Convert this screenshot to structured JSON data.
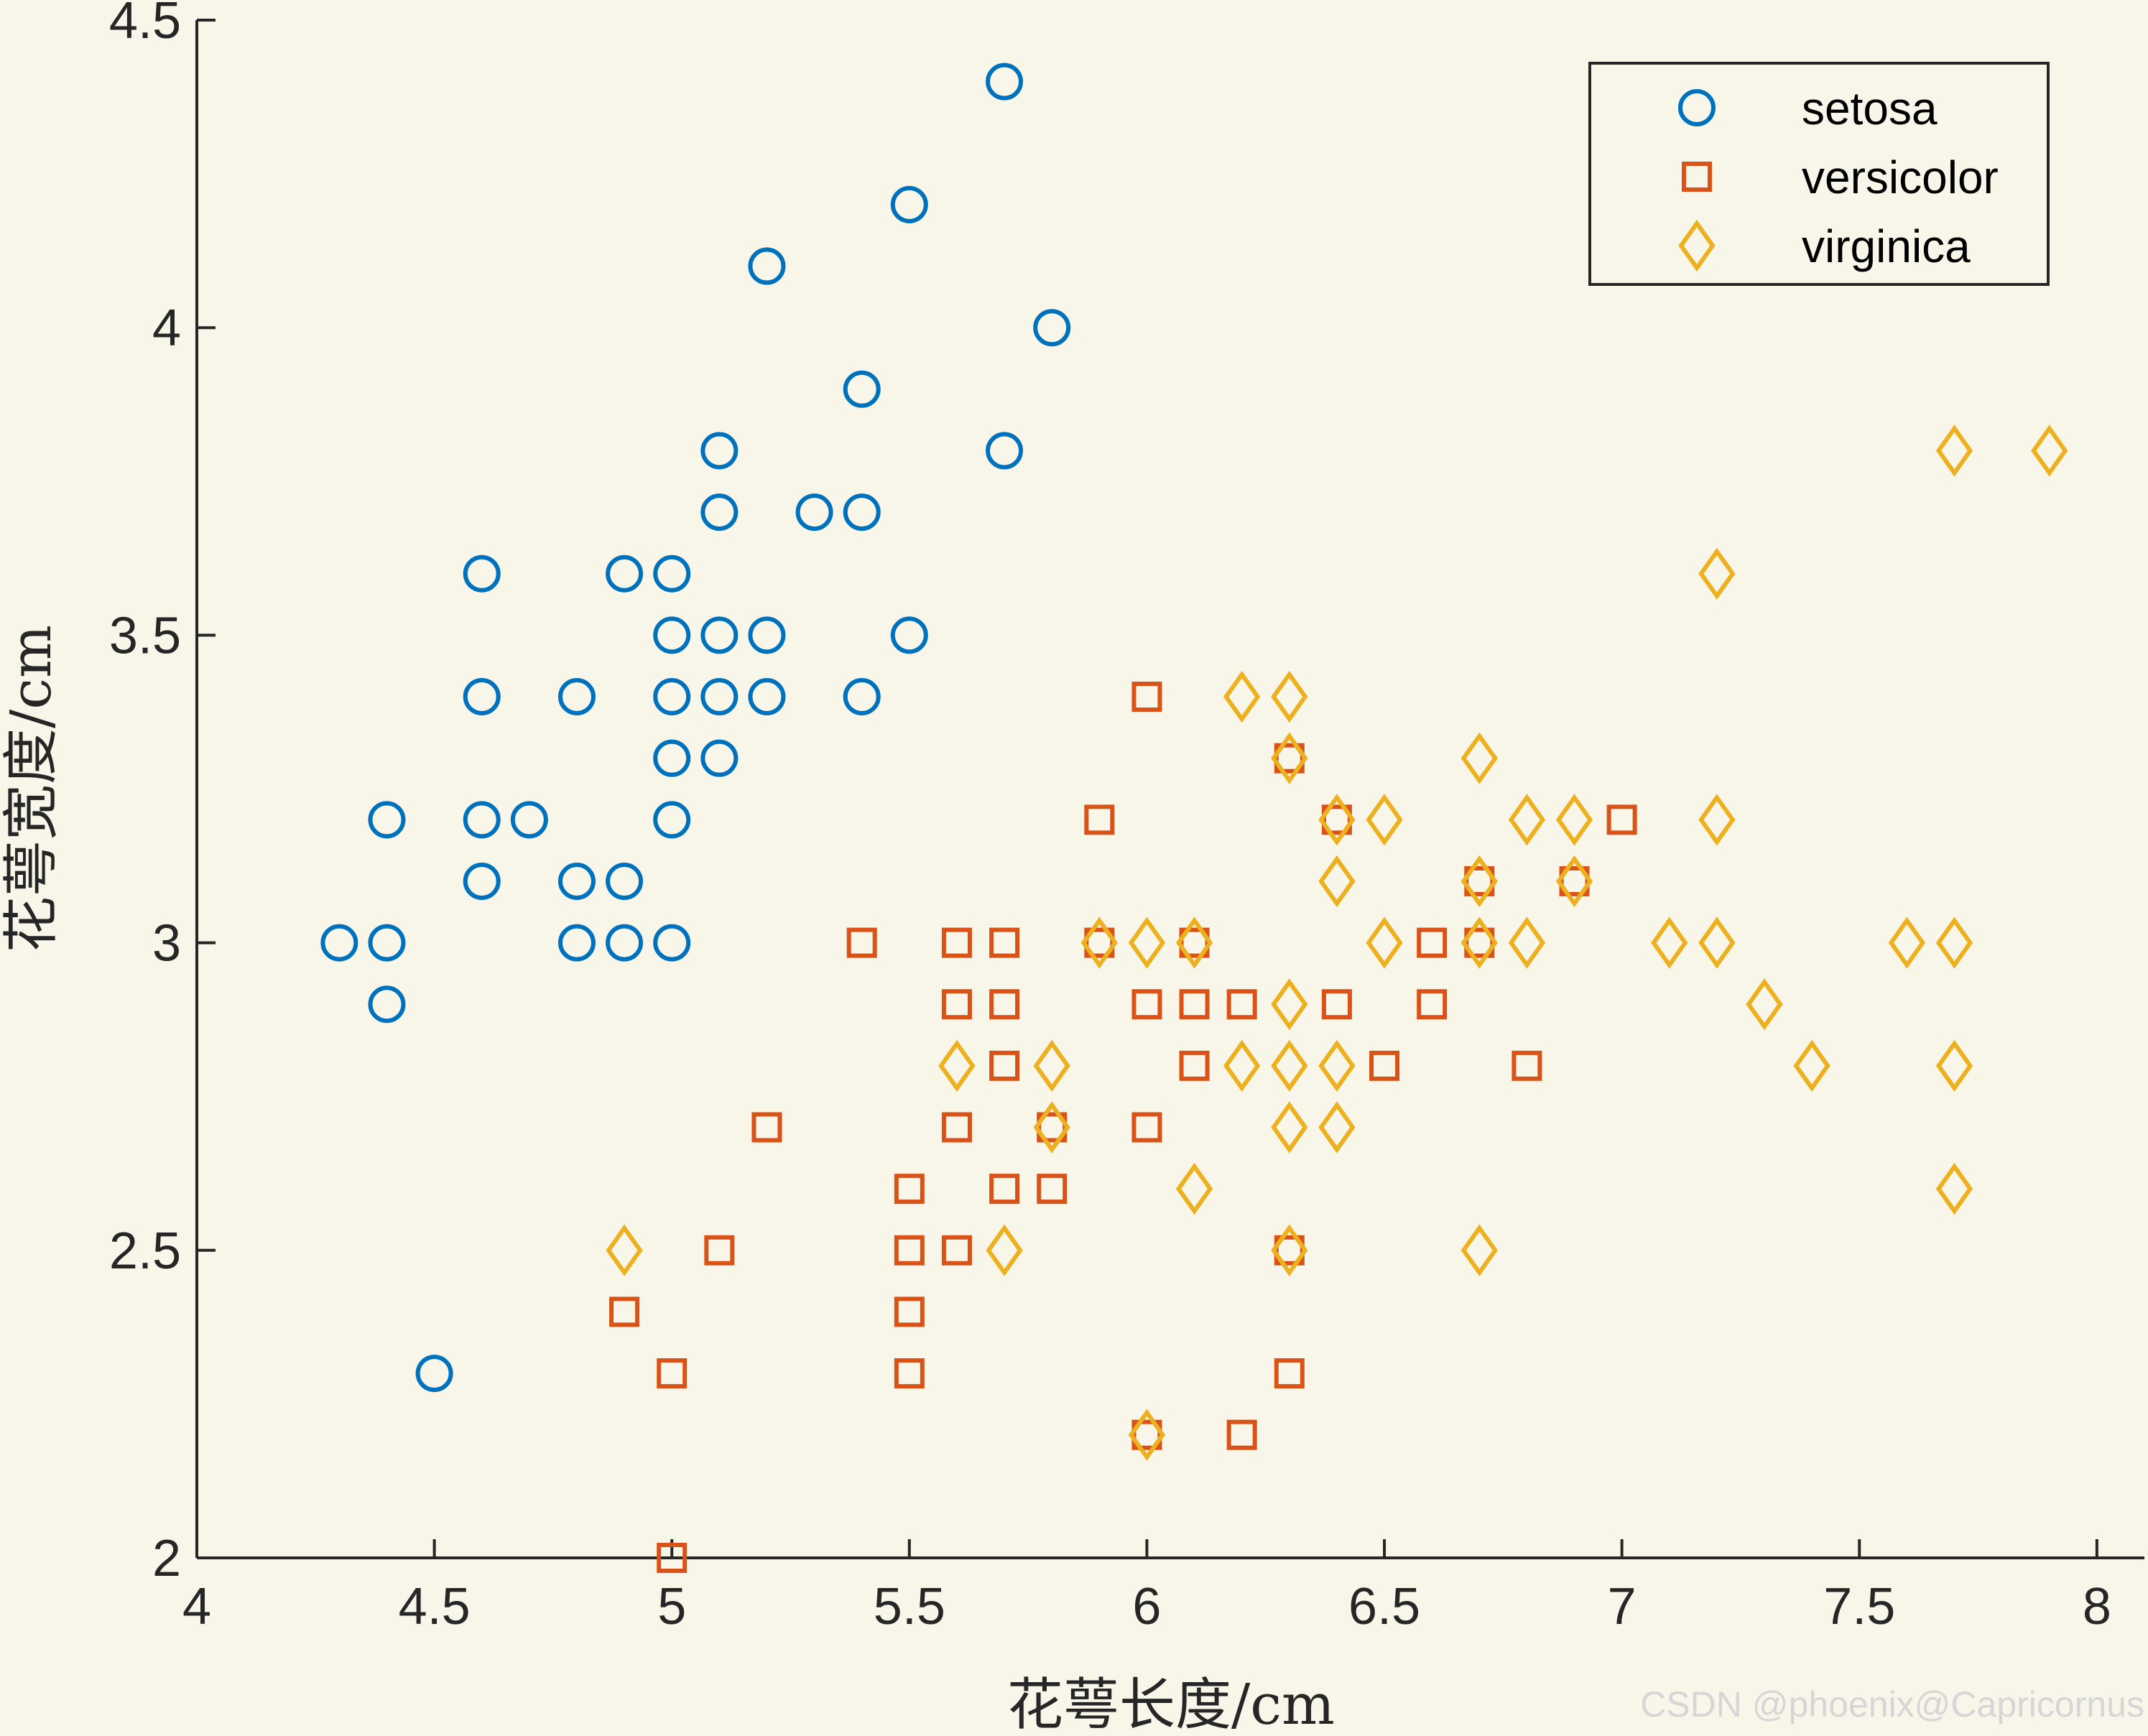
{
  "chart_data": {
    "type": "scatter",
    "xlabel": "花萼长度/cm",
    "ylabel": "花萼宽度/cm",
    "xlim": [
      4,
      8.1
    ],
    "ylim": [
      2,
      4.5
    ],
    "xticks": [
      "4",
      "4.5",
      "5",
      "5.5",
      "6",
      "6.5",
      "7",
      "7.5",
      "8"
    ],
    "yticks": [
      "2",
      "2.5",
      "3",
      "3.5",
      "4",
      "4.5"
    ],
    "grid": false,
    "legend_position": "top-right",
    "series": [
      {
        "name": "setosa",
        "marker": "circle",
        "color": "#0072bd",
        "points": [
          [
            4.3,
            3.0
          ],
          [
            4.4,
            2.9
          ],
          [
            4.4,
            3.0
          ],
          [
            4.4,
            3.2
          ],
          [
            4.5,
            2.3
          ],
          [
            4.6,
            3.1
          ],
          [
            4.6,
            3.2
          ],
          [
            4.6,
            3.4
          ],
          [
            4.6,
            3.6
          ],
          [
            4.7,
            3.2
          ],
          [
            4.8,
            3.0
          ],
          [
            4.8,
            3.1
          ],
          [
            4.8,
            3.4
          ],
          [
            4.9,
            3.0
          ],
          [
            4.9,
            3.1
          ],
          [
            4.9,
            3.6
          ],
          [
            5.0,
            3.0
          ],
          [
            5.0,
            3.2
          ],
          [
            5.0,
            3.3
          ],
          [
            5.0,
            3.4
          ],
          [
            5.0,
            3.5
          ],
          [
            5.0,
            3.6
          ],
          [
            5.1,
            3.3
          ],
          [
            5.1,
            3.4
          ],
          [
            5.1,
            3.5
          ],
          [
            5.1,
            3.7
          ],
          [
            5.1,
            3.8
          ],
          [
            5.2,
            3.4
          ],
          [
            5.2,
            3.5
          ],
          [
            5.2,
            4.1
          ],
          [
            5.3,
            3.7
          ],
          [
            5.4,
            3.4
          ],
          [
            5.4,
            3.7
          ],
          [
            5.4,
            3.9
          ],
          [
            5.5,
            3.5
          ],
          [
            5.5,
            4.2
          ],
          [
            5.7,
            3.8
          ],
          [
            5.7,
            4.4
          ],
          [
            5.8,
            4.0
          ]
        ]
      },
      {
        "name": "versicolor",
        "marker": "square",
        "color": "#d95319",
        "points": [
          [
            4.9,
            2.4
          ],
          [
            5.0,
            2.0
          ],
          [
            5.0,
            2.3
          ],
          [
            5.1,
            2.5
          ],
          [
            5.2,
            2.7
          ],
          [
            5.4,
            3.0
          ],
          [
            5.5,
            2.3
          ],
          [
            5.5,
            2.4
          ],
          [
            5.5,
            2.5
          ],
          [
            5.5,
            2.6
          ],
          [
            5.6,
            2.5
          ],
          [
            5.6,
            2.7
          ],
          [
            5.6,
            2.9
          ],
          [
            5.6,
            3.0
          ],
          [
            5.7,
            2.6
          ],
          [
            5.7,
            2.8
          ],
          [
            5.7,
            2.9
          ],
          [
            5.7,
            3.0
          ],
          [
            5.8,
            2.6
          ],
          [
            5.8,
            2.7
          ],
          [
            5.9,
            3.0
          ],
          [
            5.9,
            3.2
          ],
          [
            6.0,
            2.2
          ],
          [
            6.0,
            2.7
          ],
          [
            6.0,
            2.9
          ],
          [
            6.0,
            3.4
          ],
          [
            6.1,
            2.8
          ],
          [
            6.1,
            2.9
          ],
          [
            6.1,
            3.0
          ],
          [
            6.2,
            2.2
          ],
          [
            6.2,
            2.9
          ],
          [
            6.3,
            2.3
          ],
          [
            6.3,
            2.5
          ],
          [
            6.3,
            3.3
          ],
          [
            6.4,
            2.9
          ],
          [
            6.4,
            3.2
          ],
          [
            6.5,
            2.8
          ],
          [
            6.6,
            2.9
          ],
          [
            6.6,
            3.0
          ],
          [
            6.7,
            3.0
          ],
          [
            6.7,
            3.1
          ],
          [
            6.8,
            2.8
          ],
          [
            6.9,
            3.1
          ],
          [
            7.0,
            3.2
          ]
        ]
      },
      {
        "name": "virginica",
        "marker": "diamond",
        "color": "#edb120",
        "points": [
          [
            4.9,
            2.5
          ],
          [
            5.6,
            2.8
          ],
          [
            5.7,
            2.5
          ],
          [
            5.8,
            2.7
          ],
          [
            5.8,
            2.8
          ],
          [
            5.9,
            3.0
          ],
          [
            6.0,
            2.2
          ],
          [
            6.0,
            3.0
          ],
          [
            6.1,
            2.6
          ],
          [
            6.1,
            3.0
          ],
          [
            6.2,
            2.8
          ],
          [
            6.2,
            3.4
          ],
          [
            6.3,
            2.5
          ],
          [
            6.3,
            2.7
          ],
          [
            6.3,
            2.8
          ],
          [
            6.3,
            2.9
          ],
          [
            6.3,
            3.3
          ],
          [
            6.3,
            3.4
          ],
          [
            6.4,
            2.7
          ],
          [
            6.4,
            2.8
          ],
          [
            6.4,
            3.1
          ],
          [
            6.4,
            3.2
          ],
          [
            6.5,
            3.0
          ],
          [
            6.5,
            3.2
          ],
          [
            6.7,
            2.5
          ],
          [
            6.7,
            3.0
          ],
          [
            6.7,
            3.1
          ],
          [
            6.7,
            3.3
          ],
          [
            6.8,
            3.0
          ],
          [
            6.8,
            3.2
          ],
          [
            6.9,
            3.1
          ],
          [
            6.9,
            3.2
          ],
          [
            7.1,
            3.0
          ],
          [
            7.2,
            3.0
          ],
          [
            7.2,
            3.2
          ],
          [
            7.2,
            3.6
          ],
          [
            7.3,
            2.9
          ],
          [
            7.4,
            2.8
          ],
          [
            7.6,
            3.0
          ],
          [
            7.7,
            2.6
          ],
          [
            7.7,
            2.8
          ],
          [
            7.7,
            3.0
          ],
          [
            7.7,
            3.8
          ],
          [
            7.9,
            3.8
          ]
        ]
      }
    ]
  },
  "watermark": "CSDN @phoenix@Capricornus"
}
